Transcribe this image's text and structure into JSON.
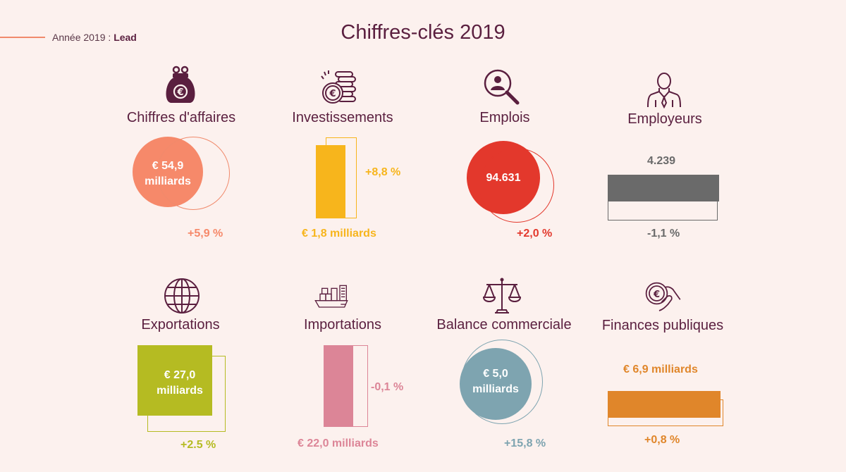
{
  "header": {
    "year_prefix": "Année 2019 : ",
    "year_brand": "Lead",
    "title": "Chiffres-clés 2019"
  },
  "colors": {
    "background": "#fcf1ee",
    "primary": "#5a1f3f",
    "revenue": "#f6896a",
    "investment": "#f7b51c",
    "jobs": "#e3382c",
    "employers": "#6a6a6a",
    "exports": "#b5bb22",
    "imports": "#dc8597",
    "balance": "#7ea4b0",
    "finances": "#e0862a"
  },
  "items": [
    {
      "label": "Chiffres d'affaires",
      "value_line1": "€ 54,9",
      "value_line2": "milliards",
      "change": "+5,9 %",
      "icon": "purse-euro-icon"
    },
    {
      "label": "Investissements",
      "value": "€ 1,8 milliards",
      "change": "+8,8 %",
      "icon": "coin-stack-icon"
    },
    {
      "label": "Emplois",
      "value": "94.631",
      "change": "+2,0 %",
      "icon": "person-magnifier-icon"
    },
    {
      "label": "Employeurs",
      "value": "4.239",
      "change": "-1,1 %",
      "icon": "businessman-icon"
    },
    {
      "label": "Exportations",
      "value_line1": "€ 27,0",
      "value_line2": "milliards",
      "change": "+2.5 %",
      "icon": "globe-icon"
    },
    {
      "label": "Importations",
      "value": "€ 22,0 milliards",
      "change": "-0,1 %",
      "icon": "cargo-ship-icon"
    },
    {
      "label": "Balance commerciale",
      "value_line1": "€ 5,0",
      "value_line2": "milliards",
      "change": "+15,8 %",
      "icon": "scales-icon"
    },
    {
      "label": "Finances publiques",
      "value": "€ 6,9 milliards",
      "change": "+0,8 %",
      "icon": "hand-euro-coin-icon"
    }
  ]
}
